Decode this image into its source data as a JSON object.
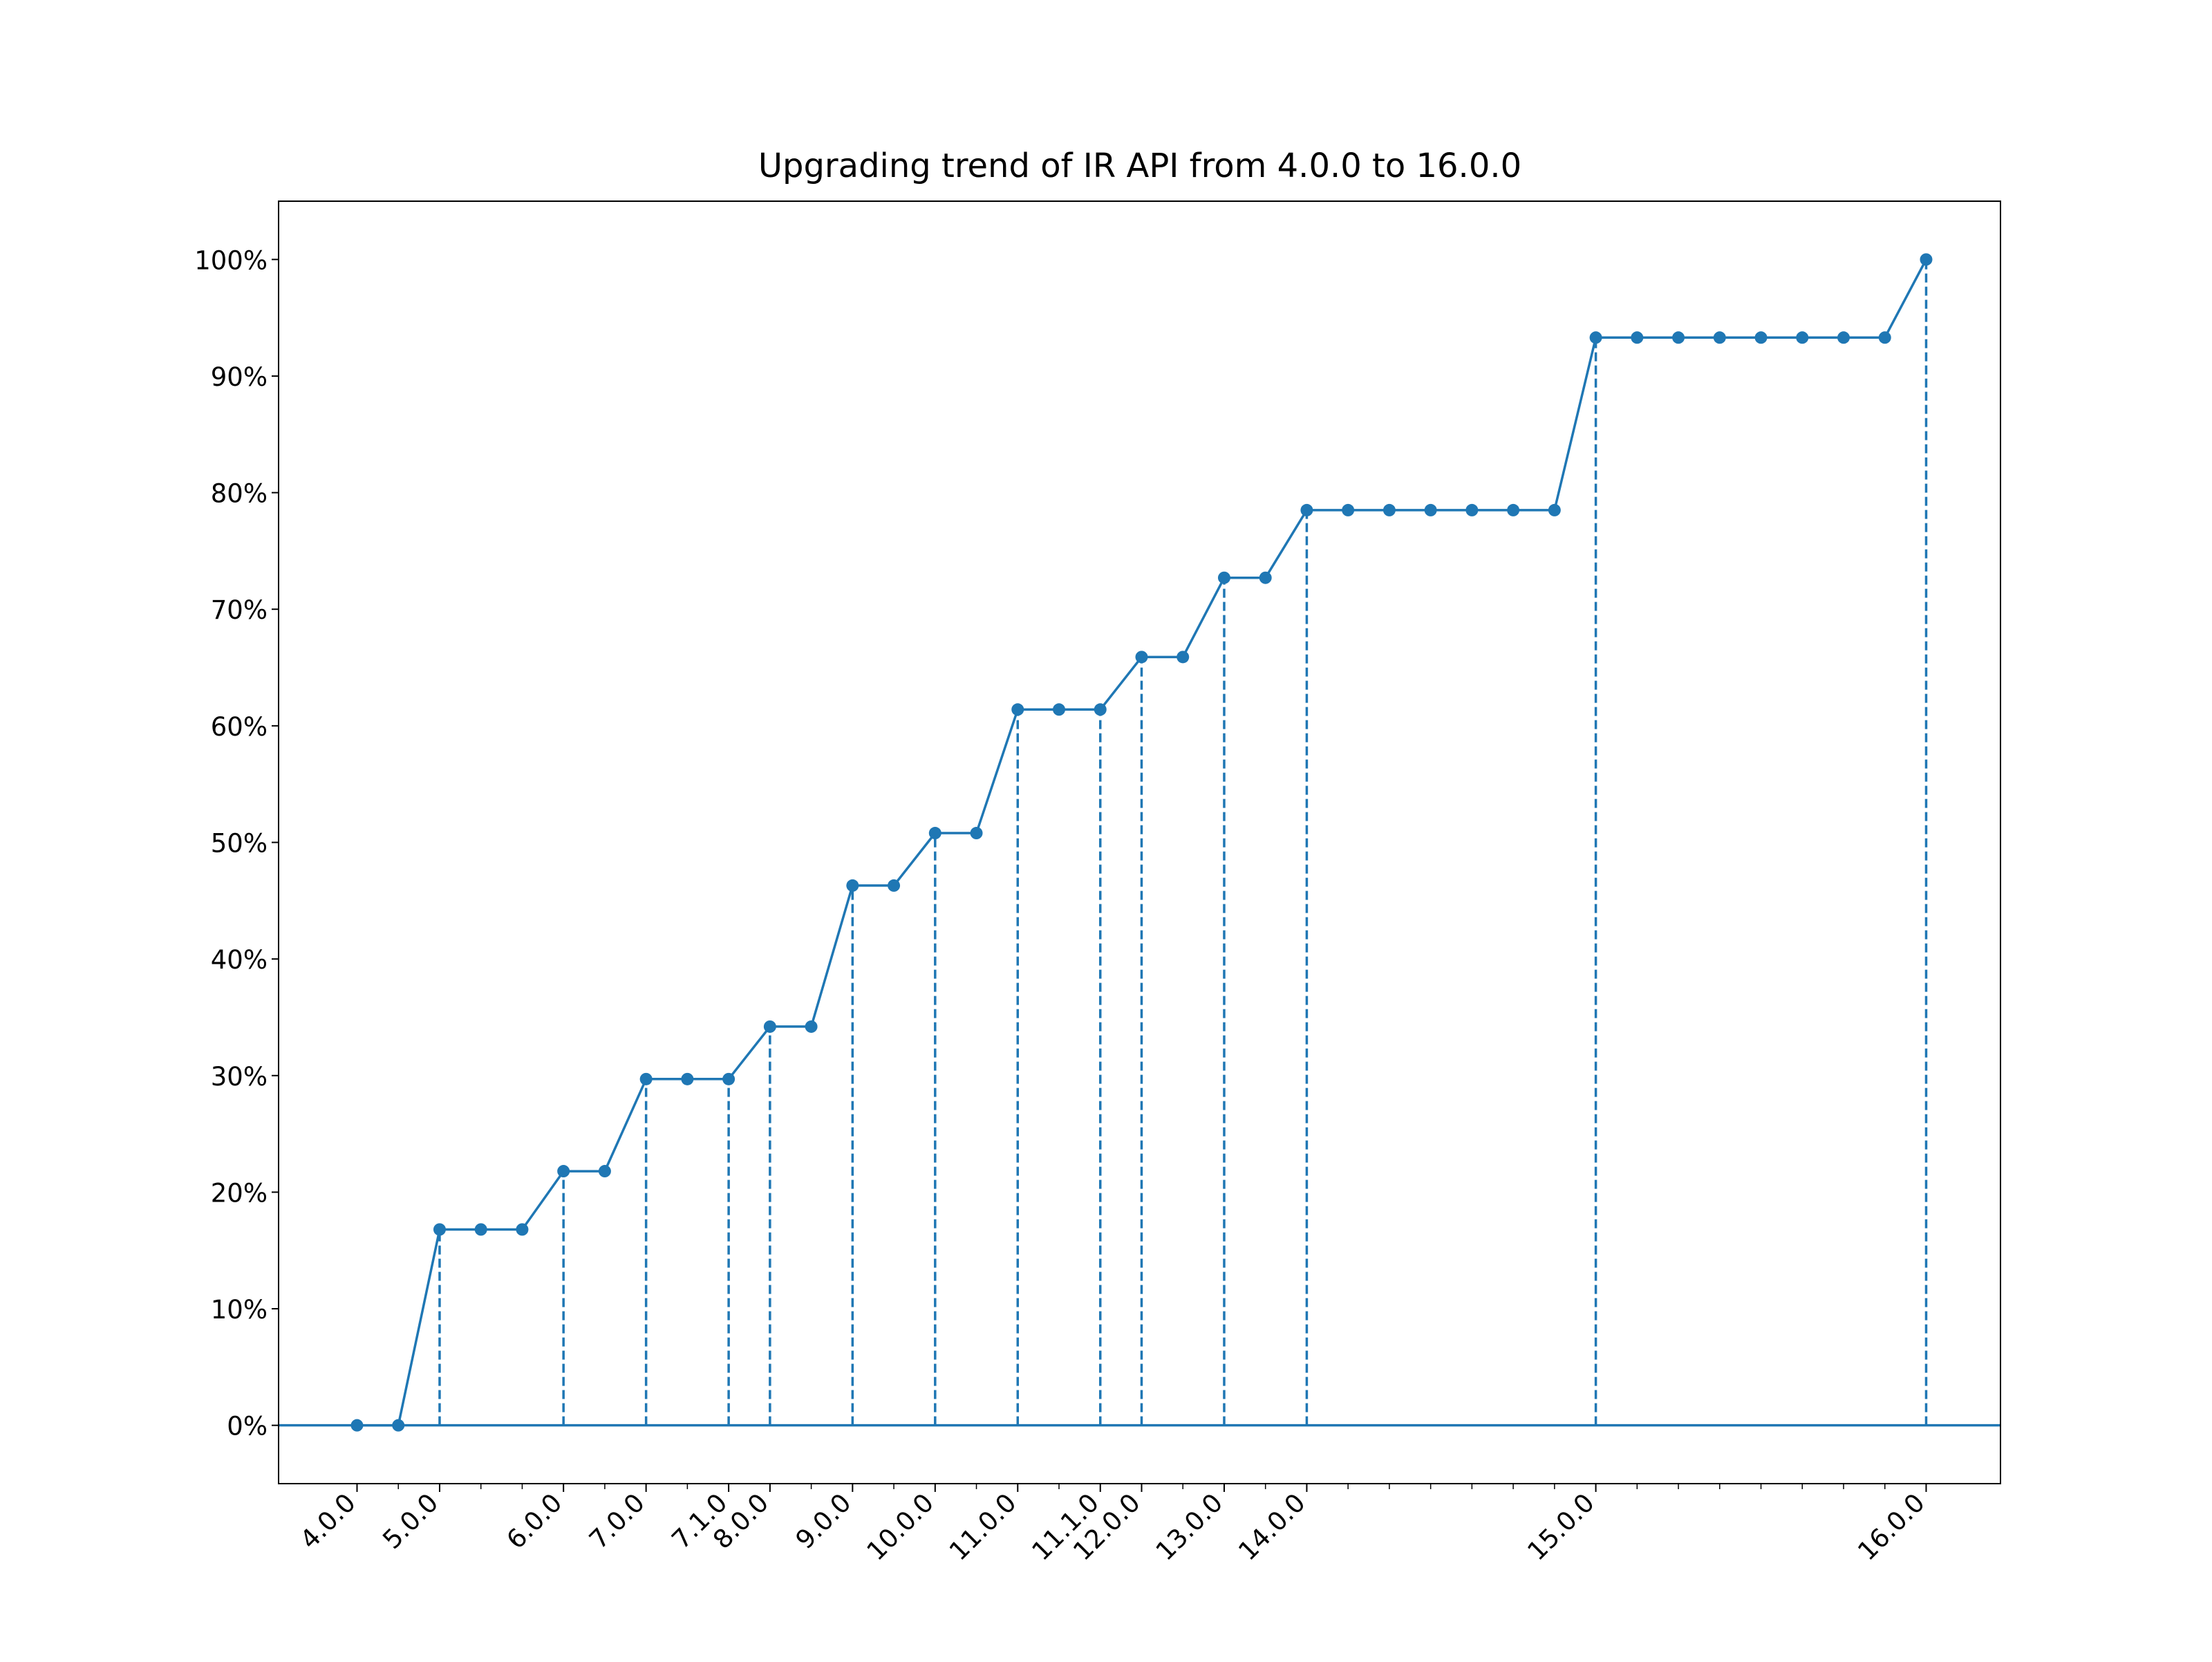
{
  "chart_data": {
    "type": "line",
    "title": "Upgrading trend of IR API from 4.0.0 to 16.0.0",
    "xlabel": "",
    "ylabel": "",
    "ylim": [
      -0.05,
      1.05
    ],
    "ytick_values": [
      0,
      0.1,
      0.2,
      0.3,
      0.4,
      0.5,
      0.6,
      0.7,
      0.8,
      0.9,
      1.0
    ],
    "ytick_labels": [
      "0%",
      "10%",
      "20%",
      "30%",
      "40%",
      "50%",
      "60%",
      "70%",
      "80%",
      "90%",
      "100%"
    ],
    "grid": false,
    "series_color": "#1f77b4",
    "xlim": [
      -1.9,
      39.8
    ],
    "x": [
      0,
      1,
      2,
      3,
      4,
      5,
      6,
      7,
      8,
      9,
      10,
      11,
      12,
      13,
      14,
      15,
      16,
      17,
      18,
      19,
      20,
      21,
      22,
      23,
      24,
      25,
      26,
      27,
      28,
      29,
      30,
      31,
      32,
      33,
      34,
      35,
      36,
      37,
      38
    ],
    "values": [
      0,
      0,
      0.168,
      0.168,
      0.168,
      0.218,
      0.218,
      0.297,
      0.297,
      0.297,
      0.342,
      0.342,
      0.463,
      0.463,
      0.508,
      0.508,
      0.614,
      0.614,
      0.614,
      0.659,
      0.659,
      0.727,
      0.727,
      0.785,
      0.785,
      0.785,
      0.785,
      0.785,
      0.785,
      0.785,
      0.933,
      0.933,
      0.933,
      0.933,
      0.933,
      0.933,
      0.933,
      0.933,
      1.0
    ],
    "release_labels": [
      {
        "x": 0,
        "label": "4.0.0"
      },
      {
        "x": 2,
        "label": "5.0.0"
      },
      {
        "x": 5,
        "label": "6.0.0"
      },
      {
        "x": 7,
        "label": "7.0.0"
      },
      {
        "x": 9,
        "label": "7.1.0"
      },
      {
        "x": 10,
        "label": "8.0.0"
      },
      {
        "x": 12,
        "label": "9.0.0"
      },
      {
        "x": 14,
        "label": "10.0.0"
      },
      {
        "x": 16,
        "label": "11.0.0"
      },
      {
        "x": 18,
        "label": "11.1.0"
      },
      {
        "x": 19,
        "label": "12.0.0"
      },
      {
        "x": 21,
        "label": "13.0.0"
      },
      {
        "x": 23,
        "label": "14.0.0"
      },
      {
        "x": 30,
        "label": "15.0.0"
      },
      {
        "x": 38,
        "label": "16.0.0"
      }
    ],
    "dashed_release_x": [
      2,
      5,
      7,
      9,
      10,
      12,
      14,
      16,
      18,
      19,
      21,
      23,
      30,
      38
    ],
    "baseline_y": 0
  }
}
